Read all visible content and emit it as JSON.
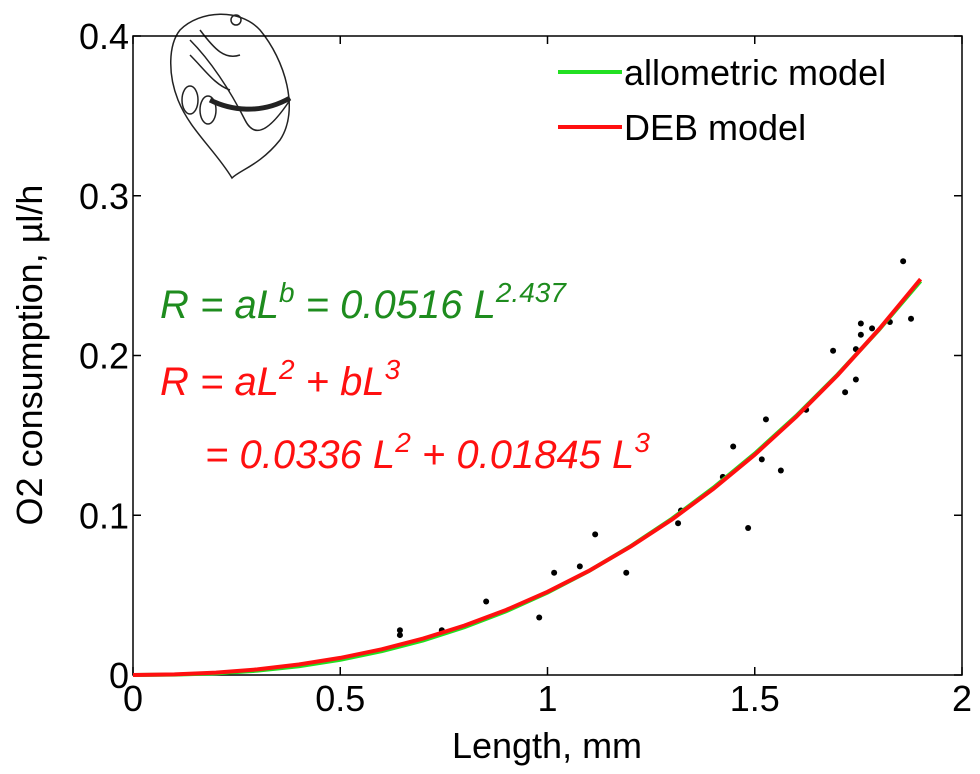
{
  "chart_data": {
    "type": "line",
    "xlabel": "Length, mm",
    "ylabel": "O2 consumption, µl/h",
    "xlim": [
      0,
      2
    ],
    "ylim": [
      0,
      0.4
    ],
    "xticks": [
      0,
      0.5,
      1,
      1.5,
      2
    ],
    "yticks": [
      0,
      0.1,
      0.2,
      0.3,
      0.4
    ],
    "legend": "upper-right",
    "x": [
      0,
      0.1,
      0.2,
      0.3,
      0.4,
      0.5,
      0.6,
      0.7,
      0.8,
      0.9,
      1.0,
      1.1,
      1.2,
      1.3,
      1.4,
      1.5,
      1.6,
      1.7,
      1.8,
      1.9
    ],
    "series": [
      {
        "name": "allometric model",
        "color": "#22e022",
        "values": [
          0,
          0.0002,
          0.001,
          0.0027,
          0.0055,
          0.0095,
          0.0149,
          0.0216,
          0.03,
          0.0399,
          0.0516,
          0.0651,
          0.0805,
          0.0978,
          0.1172,
          0.1386,
          0.1622,
          0.1881,
          0.2162,
          0.2466
        ]
      },
      {
        "name": "DEB model",
        "color": "#ff1010",
        "values": [
          0,
          0.0004,
          0.0015,
          0.0035,
          0.0066,
          0.0107,
          0.0161,
          0.0228,
          0.031,
          0.0407,
          0.0521,
          0.0652,
          0.0803,
          0.0973,
          0.1165,
          0.1379,
          0.1616,
          0.1877,
          0.2165,
          0.2478
        ]
      }
    ],
    "points": {
      "color": "#000000",
      "x": [
        0.644,
        0.644,
        0.745,
        0.852,
        0.98,
        1.016,
        1.078,
        1.115,
        1.19,
        1.315,
        1.322,
        1.423,
        1.448,
        1.484,
        1.517,
        1.527,
        1.563,
        1.624,
        1.689,
        1.718,
        1.744,
        1.744,
        1.756,
        1.756,
        1.783,
        1.826,
        1.858,
        1.877
      ],
      "values": [
        0.028,
        0.025,
        0.028,
        0.046,
        0.036,
        0.064,
        0.068,
        0.088,
        0.064,
        0.095,
        0.103,
        0.124,
        0.143,
        0.092,
        0.135,
        0.16,
        0.128,
        0.166,
        0.203,
        0.177,
        0.204,
        0.185,
        0.213,
        0.22,
        0.217,
        0.221,
        0.259,
        0.223
      ]
    },
    "annotations": [
      {
        "color": "#1e8c1e",
        "parts": [
          {
            "text": "R = aL"
          },
          {
            "text": "b",
            "sup": true
          },
          {
            "text": " = 0.0516 L"
          },
          {
            "text": "2.437",
            "sup": true
          }
        ]
      },
      {
        "color": "#ff1010",
        "parts": [
          {
            "text": "R = aL"
          },
          {
            "text": "2",
            "sup": true
          },
          {
            "text": " + bL"
          },
          {
            "text": "3",
            "sup": true
          }
        ]
      },
      {
        "color": "#ff1010",
        "parts": [
          {
            "text": "= 0.0336 L"
          },
          {
            "text": "2",
            "sup": true
          },
          {
            "text": " + 0.01845 L"
          },
          {
            "text": "3",
            "sup": true
          }
        ]
      }
    ]
  }
}
